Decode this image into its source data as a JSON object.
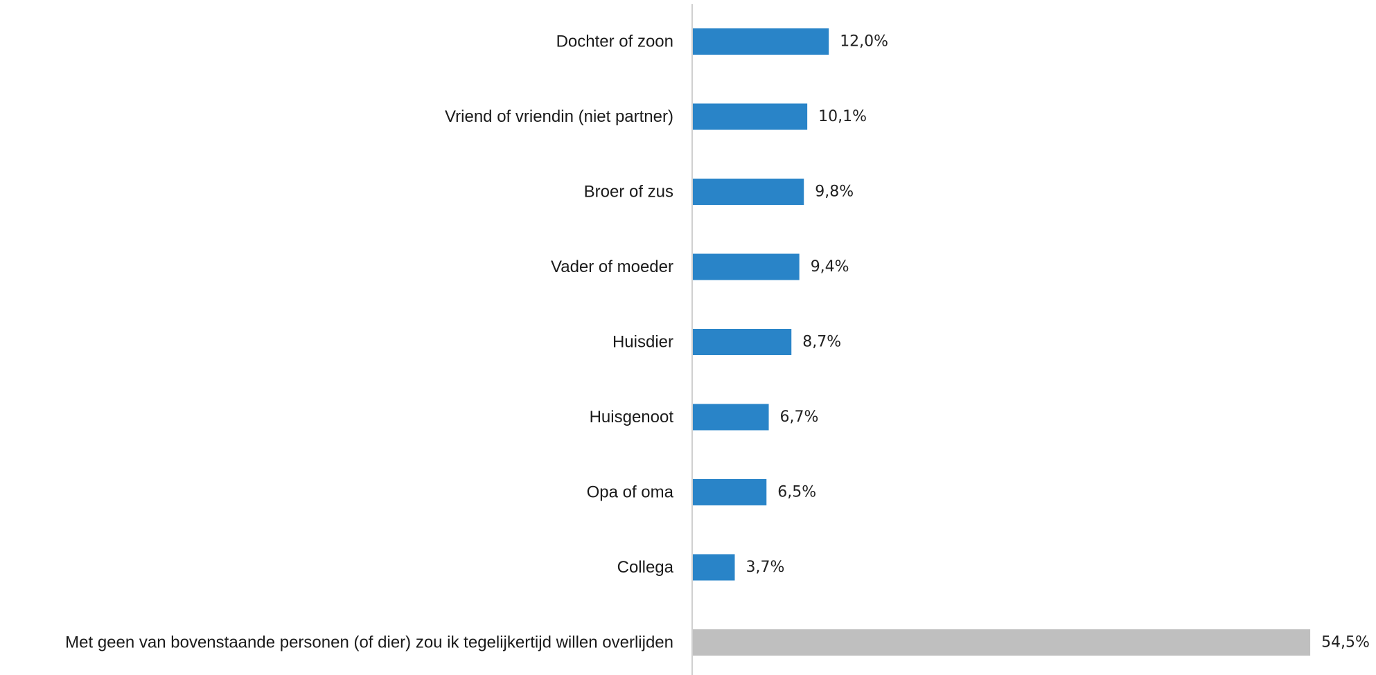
{
  "chart_data": {
    "type": "bar",
    "orientation": "horizontal",
    "categories": [
      "Dochter of zoon",
      "Vriend of vriendin (niet partner)",
      "Broer of zus",
      "Vader of moeder",
      "Huisdier",
      "Huisgenoot",
      "Opa of oma",
      "Collega",
      "Met geen van bovenstaande personen (of dier) zou ik tegelijkertijd willen overlijden"
    ],
    "values": [
      12.0,
      10.1,
      9.8,
      9.4,
      8.7,
      6.7,
      6.5,
      3.7,
      54.5
    ],
    "value_labels": [
      "12,0%",
      "10,1%",
      "9,8%",
      "9,4%",
      "8,7%",
      "6,7%",
      "6,5%",
      "3,7%",
      "54,5%"
    ],
    "bar_colors": [
      "#2984C8",
      "#2984C8",
      "#2984C8",
      "#2984C8",
      "#2984C8",
      "#2984C8",
      "#2984C8",
      "#2984C8",
      "#BFBFBF"
    ],
    "axis_color": "#D0D0D0",
    "title": "",
    "xlabel": "",
    "ylabel": "",
    "xlim": [
      0,
      54.5
    ],
    "grid": false,
    "legend": "none"
  }
}
